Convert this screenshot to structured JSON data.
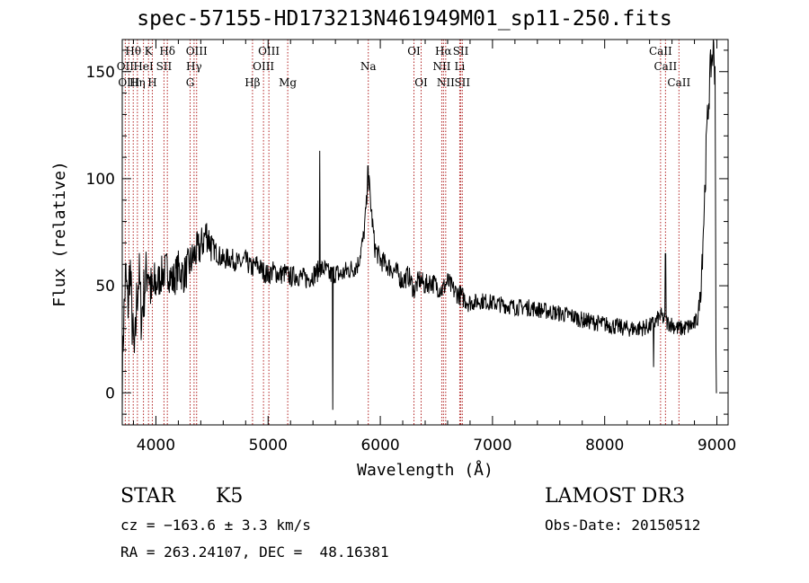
{
  "header": {
    "title": "spec-57155-HD173213N461949M01_sp11-250.fits"
  },
  "info": {
    "class_label": "STAR",
    "subclass": "K5",
    "survey": "LAMOST DR3",
    "cz": "cz = −163.6 ± 3.3 km/s",
    "obs_date": "Obs-Date: 20150512",
    "radec": "RA = 263.24107, DEC =  48.16381"
  },
  "colors": {
    "spectrum": "#000000",
    "line_marker": "#b22222",
    "axis": "#000000"
  },
  "chart_data": {
    "type": "line",
    "xlabel": "Wavelength (Å)",
    "ylabel": "Flux (relative)",
    "xlim": [
      3700,
      9100
    ],
    "ylim": [
      -15,
      165
    ],
    "xticks": [
      4000,
      5000,
      6000,
      7000,
      8000,
      9000
    ],
    "yticks": [
      0,
      50,
      100,
      150
    ],
    "grid": false,
    "series": [
      {
        "anchors": [
          [
            3700,
            5
          ],
          [
            3710,
            30
          ],
          [
            3730,
            55
          ],
          [
            3750,
            40
          ],
          [
            3770,
            60
          ],
          [
            3790,
            30
          ],
          [
            3810,
            15
          ],
          [
            3830,
            45
          ],
          [
            3850,
            55
          ],
          [
            3870,
            35
          ],
          [
            3900,
            50
          ],
          [
            3930,
            60
          ],
          [
            3960,
            45
          ],
          [
            4000,
            50
          ],
          [
            4050,
            55
          ],
          [
            4100,
            58
          ],
          [
            4150,
            52
          ],
          [
            4200,
            58
          ],
          [
            4250,
            55
          ],
          [
            4300,
            60
          ],
          [
            4350,
            65
          ],
          [
            4400,
            68
          ],
          [
            4450,
            75
          ],
          [
            4500,
            68
          ],
          [
            4550,
            65
          ],
          [
            4600,
            62
          ],
          [
            4650,
            63
          ],
          [
            4700,
            62
          ],
          [
            4750,
            60
          ],
          [
            4800,
            62
          ],
          [
            4850,
            58
          ],
          [
            4900,
            60
          ],
          [
            4950,
            57
          ],
          [
            5000,
            55
          ],
          [
            5050,
            57
          ],
          [
            5100,
            55
          ],
          [
            5150,
            56
          ],
          [
            5200,
            54
          ],
          [
            5250,
            55
          ],
          [
            5300,
            54
          ],
          [
            5350,
            53
          ],
          [
            5400,
            55
          ],
          [
            5450,
            57
          ],
          [
            5500,
            58
          ],
          [
            5550,
            55
          ],
          [
            5600,
            56
          ],
          [
            5650,
            55
          ],
          [
            5700,
            57
          ],
          [
            5750,
            58
          ],
          [
            5800,
            60
          ],
          [
            5850,
            72
          ],
          [
            5880,
            90
          ],
          [
            5900,
            98
          ],
          [
            5920,
            85
          ],
          [
            5950,
            68
          ],
          [
            6000,
            62
          ],
          [
            6050,
            60
          ],
          [
            6100,
            58
          ],
          [
            6150,
            56
          ],
          [
            6200,
            52
          ],
          [
            6250,
            55
          ],
          [
            6300,
            48
          ],
          [
            6350,
            53
          ],
          [
            6400,
            50
          ],
          [
            6450,
            52
          ],
          [
            6500,
            50
          ],
          [
            6550,
            48
          ],
          [
            6600,
            52
          ],
          [
            6650,
            48
          ],
          [
            6700,
            46
          ],
          [
            6750,
            44
          ],
          [
            6800,
            42
          ],
          [
            6900,
            43
          ],
          [
            7000,
            42
          ],
          [
            7100,
            41
          ],
          [
            7200,
            40
          ],
          [
            7300,
            40
          ],
          [
            7400,
            39
          ],
          [
            7500,
            38
          ],
          [
            7600,
            37
          ],
          [
            7700,
            36
          ],
          [
            7800,
            34
          ],
          [
            7900,
            33
          ],
          [
            8000,
            32
          ],
          [
            8100,
            31
          ],
          [
            8200,
            30
          ],
          [
            8300,
            30
          ],
          [
            8400,
            31
          ],
          [
            8450,
            33
          ],
          [
            8500,
            36
          ],
          [
            8550,
            33
          ],
          [
            8600,
            32
          ],
          [
            8650,
            30
          ],
          [
            8700,
            30
          ],
          [
            8750,
            31
          ],
          [
            8800,
            32
          ],
          [
            8830,
            35
          ],
          [
            8850,
            45
          ],
          [
            8870,
            65
          ],
          [
            8890,
            90
          ],
          [
            8910,
            120
          ],
          [
            8930,
            140
          ],
          [
            8950,
            155
          ],
          [
            8970,
            160
          ],
          [
            8985,
            150
          ],
          [
            8990,
            60
          ],
          [
            8993,
            0
          ],
          [
            9000,
            0
          ]
        ]
      }
    ],
    "spikes": [
      {
        "x": 5460,
        "y": 113
      },
      {
        "x": 5577,
        "y": -8
      },
      {
        "x": 5890,
        "y": 106
      },
      {
        "x": 8436,
        "y": 12
      },
      {
        "x": 8542,
        "y": 65
      }
    ],
    "lines": [
      {
        "label": "Hθ",
        "x": 3798,
        "row": 0
      },
      {
        "label": "K",
        "x": 3934,
        "row": 0
      },
      {
        "label": "Hδ",
        "x": 4102,
        "row": 0
      },
      {
        "label": "OIII",
        "x": 4363,
        "row": 0
      },
      {
        "label": "OIII",
        "x": 5007,
        "row": 0
      },
      {
        "label": "OI",
        "x": 6300,
        "row": 0
      },
      {
        "label": "Hα",
        "x": 6563,
        "row": 0
      },
      {
        "label": "SII",
        "x": 6717,
        "row": 0
      },
      {
        "label": "CaII",
        "x": 8498,
        "row": 0
      },
      {
        "label": "OII",
        "x": 3727,
        "row": 1
      },
      {
        "label": "HeI",
        "x": 3889,
        "row": 1
      },
      {
        "label": "SII",
        "x": 4072,
        "row": 1
      },
      {
        "label": "Hγ",
        "x": 4340,
        "row": 1
      },
      {
        "label": "OIII",
        "x": 4959,
        "row": 1
      },
      {
        "label": "Na",
        "x": 5893,
        "row": 1
      },
      {
        "label": "NII",
        "x": 6548,
        "row": 1
      },
      {
        "label": "Li",
        "x": 6708,
        "row": 1
      },
      {
        "label": "CaII",
        "x": 8542,
        "row": 1
      },
      {
        "label": "OIII",
        "x": 3759,
        "row": 2
      },
      {
        "label": "Hη",
        "x": 3835,
        "row": 2
      },
      {
        "label": "H",
        "x": 3968,
        "row": 2
      },
      {
        "label": "G",
        "x": 4305,
        "row": 2
      },
      {
        "label": "Hβ",
        "x": 4861,
        "row": 2
      },
      {
        "label": "Mg",
        "x": 5175,
        "row": 2
      },
      {
        "label": "OI",
        "x": 6364,
        "row": 2
      },
      {
        "label": "NII",
        "x": 6583,
        "row": 2
      },
      {
        "label": "SII",
        "x": 6731,
        "row": 2
      },
      {
        "label": "CaII",
        "x": 8662,
        "row": 2
      }
    ]
  }
}
